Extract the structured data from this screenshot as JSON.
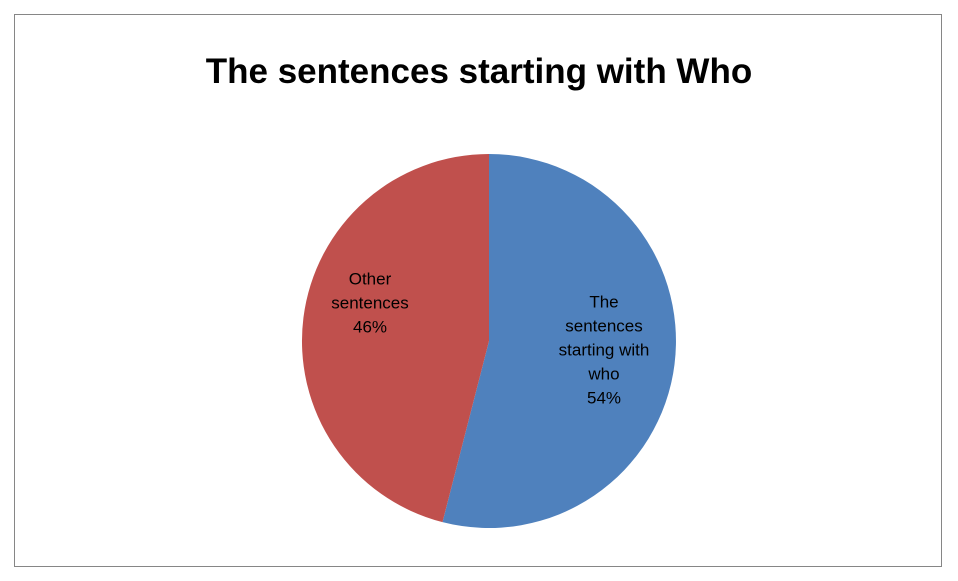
{
  "chart_data": {
    "type": "pie",
    "title": "The sentences starting with Who",
    "categories": [
      "The sentences starting with who",
      "Other sentences"
    ],
    "values": [
      54,
      46
    ],
    "data_labels": [
      "54%",
      "46%"
    ],
    "colors": [
      "#4F81BD",
      "#C0504D"
    ],
    "legend": "none",
    "label_lines": [
      [
        "The",
        "sentences",
        "starting with",
        "who"
      ],
      [
        "Other",
        "sentences"
      ]
    ]
  }
}
